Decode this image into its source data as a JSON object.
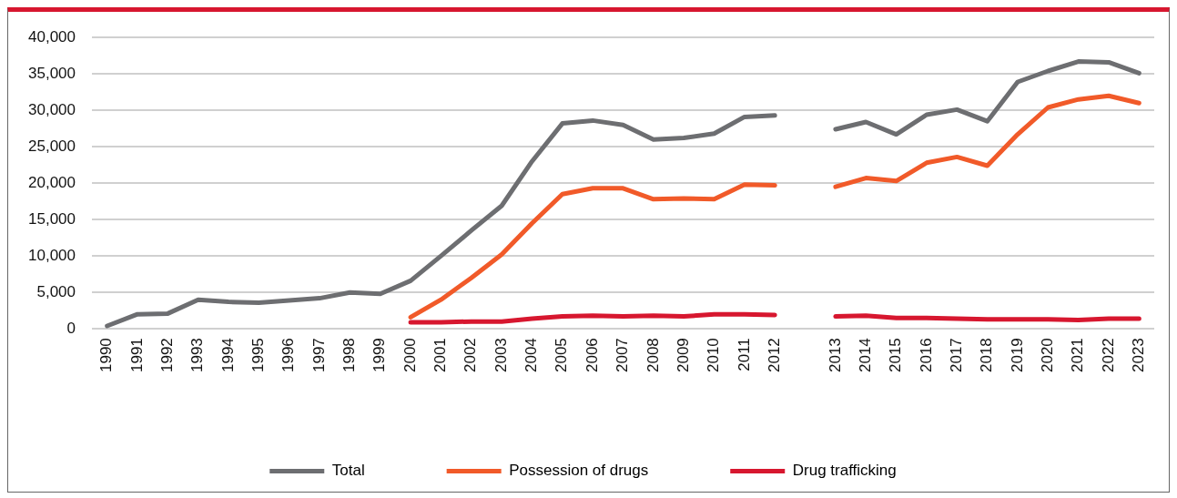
{
  "chart_data": {
    "type": "line",
    "categories": [
      "1990",
      "1991",
      "1992",
      "1993",
      "1994",
      "1995",
      "1996",
      "1997",
      "1998",
      "1999",
      "2000",
      "2001",
      "2002",
      "2003",
      "2004",
      "2005",
      "2006",
      "2007",
      "2008",
      "2009",
      "2010",
      "2011",
      "2012",
      null,
      "2013",
      "2014",
      "2015",
      "2016",
      "2017",
      "2018",
      "2019",
      "2020",
      "2021",
      "2022",
      "2023"
    ],
    "series": [
      {
        "name": "Total",
        "color": "#6d6e71",
        "values": [
          400,
          2000,
          2100,
          4000,
          3700,
          3600,
          3900,
          4200,
          5000,
          4800,
          6600,
          10000,
          13500,
          16900,
          23000,
          28200,
          28600,
          28000,
          26000,
          26200,
          26800,
          29100,
          29300,
          null,
          27400,
          28400,
          26700,
          29400,
          30100,
          28500,
          33900,
          35400,
          36700,
          36600,
          35100
        ]
      },
      {
        "name": "Possession of drugs",
        "color": "#f15a29",
        "values": [
          null,
          null,
          null,
          null,
          null,
          null,
          null,
          null,
          null,
          null,
          1600,
          4000,
          7000,
          10200,
          14500,
          18500,
          19300,
          19300,
          17800,
          17900,
          17800,
          19800,
          19700,
          null,
          19500,
          20700,
          20300,
          22800,
          23600,
          22400,
          26700,
          30400,
          31500,
          32000,
          31000
        ]
      },
      {
        "name": "Drug trafficking",
        "color": "#d7172f",
        "values": [
          null,
          null,
          null,
          null,
          null,
          null,
          null,
          null,
          null,
          null,
          900,
          900,
          1000,
          1000,
          1400,
          1700,
          1800,
          1700,
          1800,
          1700,
          2000,
          2000,
          1900,
          null,
          1700,
          1800,
          1500,
          1500,
          1400,
          1300,
          1300,
          1300,
          1200,
          1400,
          1400
        ]
      }
    ],
    "ylim": [
      0,
      40000
    ],
    "yticks": [
      {
        "value": 0,
        "label": "0"
      },
      {
        "value": 5000,
        "label": "5,000"
      },
      {
        "value": 10000,
        "label": "10,000"
      },
      {
        "value": 15000,
        "label": "15,000"
      },
      {
        "value": 20000,
        "label": "20,000"
      },
      {
        "value": 25000,
        "label": "25,000"
      },
      {
        "value": 30000,
        "label": "30,000"
      },
      {
        "value": 35000,
        "label": "35,000"
      },
      {
        "value": 40000,
        "label": "40,000"
      }
    ],
    "grid": "y",
    "legend": "bottom",
    "marker": "none",
    "line_style": "solid"
  }
}
